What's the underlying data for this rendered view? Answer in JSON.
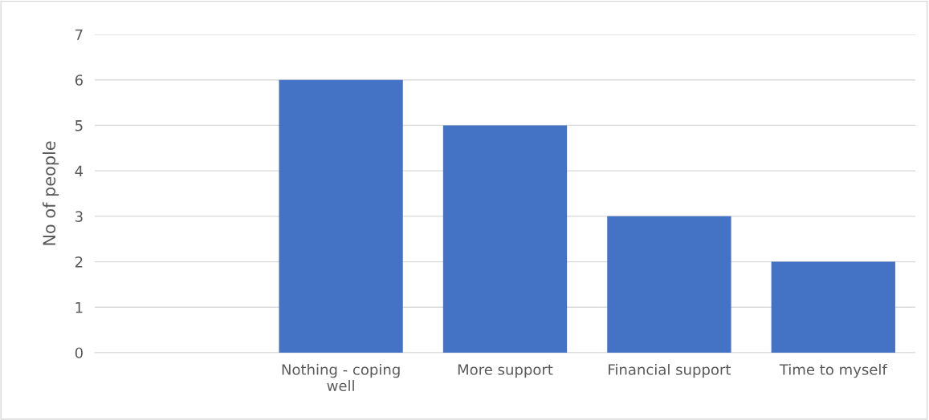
{
  "chart_data": {
    "type": "bar",
    "ylabel": "No of people",
    "categories": [
      null,
      "Nothing - coping well",
      "More support",
      "Financial support",
      "Time to myself"
    ],
    "values": [
      null,
      6,
      5,
      3,
      2
    ],
    "color": "#4472c4",
    "ylim": [
      0,
      7
    ],
    "yticks": [
      0,
      1,
      2,
      3,
      4,
      5,
      6,
      7
    ],
    "grid": "y",
    "legend": false
  }
}
